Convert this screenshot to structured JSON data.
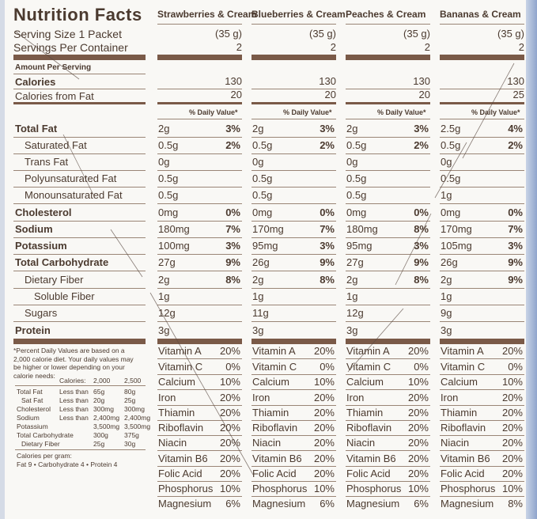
{
  "panel": {
    "title": "Nutrition Facts",
    "serving_size": "Serving Size 1 Packet",
    "servings_per_container": "Servings Per Container",
    "amount_per_serving": "Amount Per Serving",
    "calories": "Calories",
    "calories_from_fat": "Calories from Fat",
    "daily_value_header": "% Daily Value*",
    "nutrients": [
      "Total Fat",
      "Saturated Fat",
      "Trans Fat",
      "Polyunsaturated Fat",
      "Monounsaturated Fat",
      "Cholesterol",
      "Sodium",
      "Potassium",
      "Total Carbohydrate",
      "Dietary Fiber",
      "Soluble Fiber",
      "Sugars",
      "Protein"
    ],
    "vitamins": [
      "Vitamin A",
      "Vitamin C",
      "Calcium",
      "Iron",
      "Thiamin",
      "Riboflavin",
      "Niacin",
      "Vitamin B6",
      "Folic Acid",
      "Phosphorus",
      "Magnesium"
    ]
  },
  "footnote": {
    "text": "*Percent Daily Values are based on a 2,000 calorie diet. Your daily values may be higher or lower depending on your calorie needs:",
    "calories_label": "Calories:",
    "cal_2000": "2,000",
    "cal_2500": "2,500",
    "rows": [
      {
        "name": "Total Fat",
        "cond": "Less than",
        "a": "65g",
        "b": "80g"
      },
      {
        "name": "Sat Fat",
        "cond": "Less than",
        "a": "20g",
        "b": "25g"
      },
      {
        "name": "Cholesterol",
        "cond": "Less than",
        "a": "300mg",
        "b": "300mg"
      },
      {
        "name": "Sodium",
        "cond": "Less than",
        "a": "2,400mg",
        "b": "2,400mg"
      },
      {
        "name": "Potassium",
        "cond": "",
        "a": "3,500mg",
        "b": "3,500mg"
      },
      {
        "name": "Total Carbohydrate",
        "cond": "",
        "a": "300g",
        "b": "375g"
      },
      {
        "name": "Dietary Fiber",
        "cond": "",
        "a": "25g",
        "b": "30g"
      }
    ],
    "per_gram": "Calories per gram:",
    "per_gram_values": "Fat 9  •  Carbohydrate 4  •  Protein 4"
  },
  "products": [
    {
      "name": "Strawberries & Cream",
      "serving": "(35 g)",
      "servings": "2",
      "calories": "130",
      "cal_fat": "20",
      "amounts": [
        "2g",
        "0.5g",
        "0g",
        "0.5g",
        "0.5g",
        "0mg",
        "180mg",
        "100mg",
        "27g",
        "2g",
        "1g",
        "12g",
        "3g"
      ],
      "dv": [
        "3%",
        "2%",
        "",
        "",
        "",
        "0%",
        "7%",
        "3%",
        "9%",
        "8%",
        "",
        "",
        ""
      ],
      "vit": [
        "20%",
        "0%",
        "10%",
        "20%",
        "20%",
        "20%",
        "20%",
        "20%",
        "20%",
        "10%",
        "6%"
      ]
    },
    {
      "name": "Blueberries & Cream",
      "serving": "(35 g)",
      "servings": "2",
      "calories": "130",
      "cal_fat": "20",
      "amounts": [
        "2g",
        "0.5g",
        "0g",
        "0.5g",
        "0.5g",
        "0mg",
        "170mg",
        "95mg",
        "26g",
        "2g",
        "1g",
        "11g",
        "3g"
      ],
      "dv": [
        "3%",
        "2%",
        "",
        "",
        "",
        "0%",
        "7%",
        "3%",
        "9%",
        "8%",
        "",
        "",
        ""
      ],
      "vit": [
        "20%",
        "0%",
        "10%",
        "20%",
        "20%",
        "20%",
        "20%",
        "20%",
        "20%",
        "10%",
        "6%"
      ]
    },
    {
      "name": "Peaches & Cream",
      "serving": "(35 g)",
      "servings": "2",
      "calories": "130",
      "cal_fat": "20",
      "amounts": [
        "2g",
        "0.5g",
        "0g",
        "0.5g",
        "0.5g",
        "0mg",
        "180mg",
        "95mg",
        "27g",
        "2g",
        "1g",
        "12g",
        "3g"
      ],
      "dv": [
        "3%",
        "2%",
        "",
        "",
        "",
        "0%",
        "8%",
        "3%",
        "9%",
        "8%",
        "",
        "",
        ""
      ],
      "vit": [
        "20%",
        "0%",
        "10%",
        "20%",
        "20%",
        "20%",
        "20%",
        "20%",
        "20%",
        "10%",
        "6%"
      ]
    },
    {
      "name": "Bananas & Cream",
      "serving": "(35 g)",
      "servings": "2",
      "calories": "130",
      "cal_fat": "25",
      "amounts": [
        "2.5g",
        "0.5g",
        "0g",
        "0.5g",
        "1g",
        "0mg",
        "170mg",
        "105mg",
        "26g",
        "2g",
        "1g",
        "9g",
        "3g"
      ],
      "dv": [
        "4%",
        "2%",
        "",
        "",
        "",
        "0%",
        "7%",
        "3%",
        "9%",
        "9%",
        "",
        "",
        ""
      ],
      "vit": [
        "20%",
        "0%",
        "10%",
        "20%",
        "20%",
        "20%",
        "20%",
        "20%",
        "20%",
        "10%",
        "8%"
      ]
    }
  ]
}
